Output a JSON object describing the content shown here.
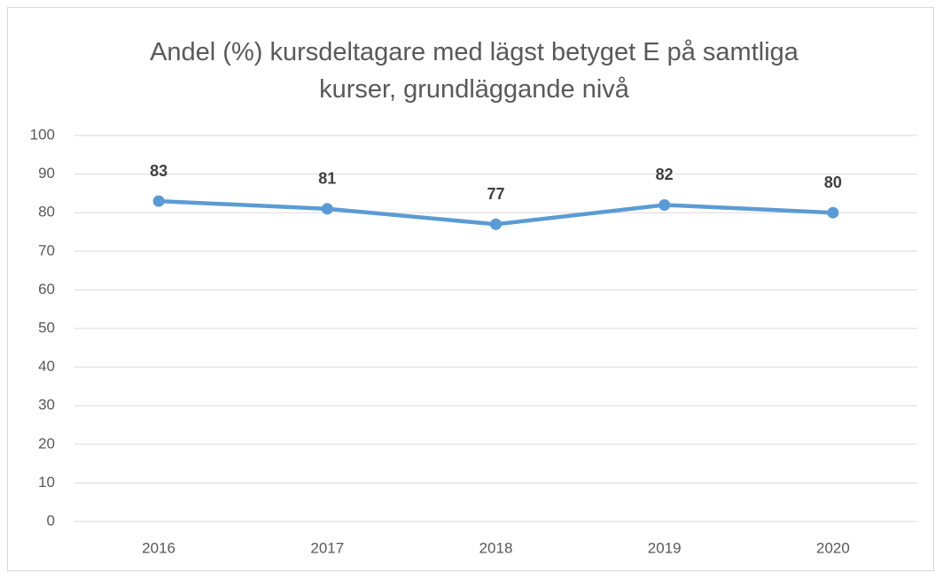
{
  "chart_data": {
    "type": "line",
    "title": "Andel (%) kursdeltagare med lägst betyget E på samtliga kurser, grundläggande nivå",
    "categories": [
      "2016",
      "2017",
      "2018",
      "2019",
      "2020"
    ],
    "series": [
      {
        "name": "Andel",
        "color": "#5b9bd5",
        "values": [
          83,
          81,
          77,
          82,
          80
        ]
      }
    ],
    "ylim": [
      0,
      100
    ],
    "yticks": [
      0,
      10,
      20,
      30,
      40,
      50,
      60,
      70,
      80,
      90,
      100
    ],
    "grid": true
  }
}
